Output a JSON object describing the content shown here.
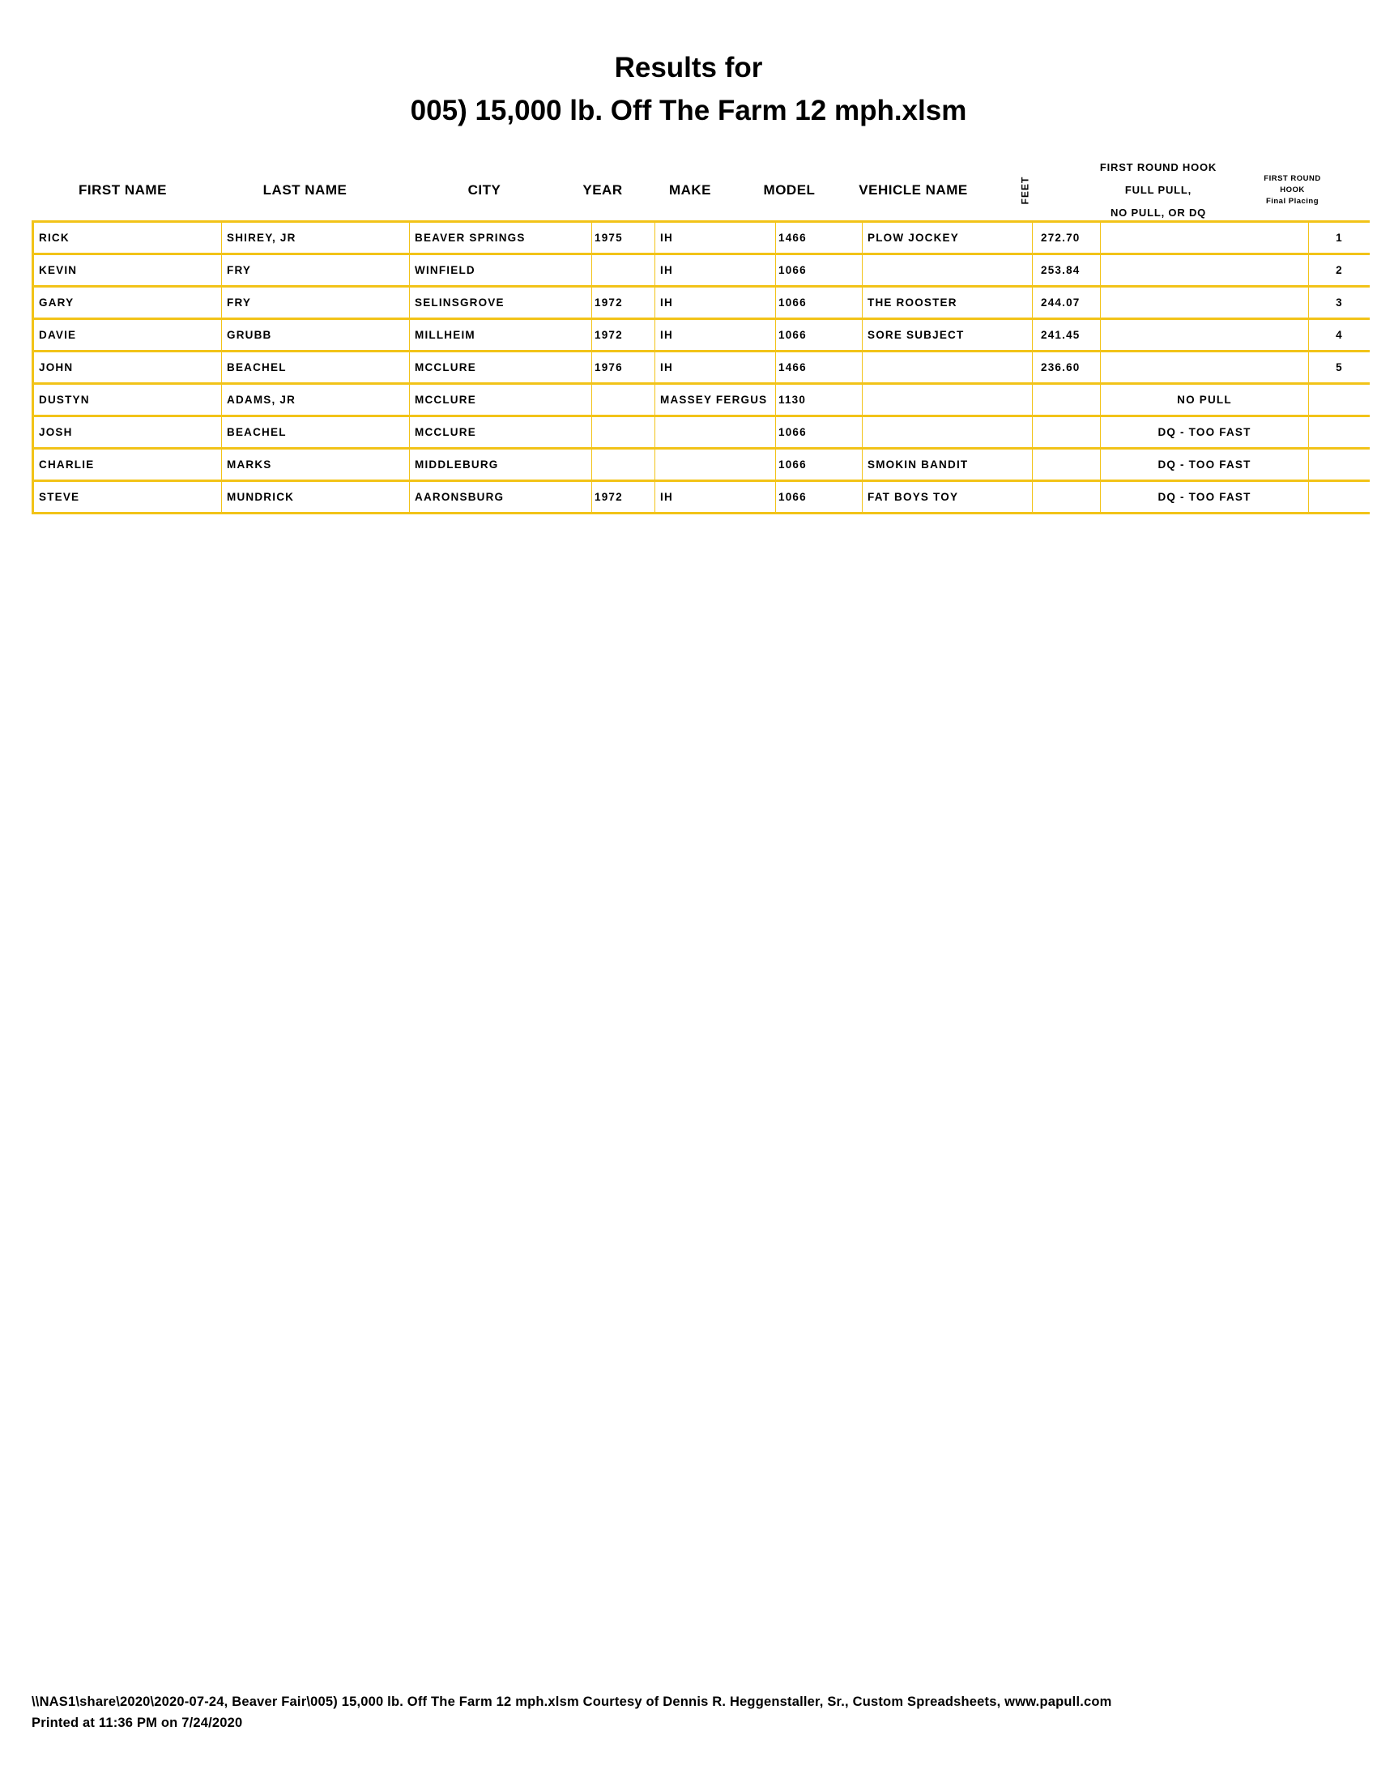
{
  "title": {
    "line1": "Results for",
    "line2": "005) 15,000 lb. Off The Farm  12 mph.xlsm"
  },
  "colors": {
    "grid": "#f2c318",
    "text": "#000000"
  },
  "columns": [
    "FIRST NAME",
    "LAST NAME",
    "CITY",
    "YEAR",
    "MAKE",
    "MODEL",
    "VEHICLE NAME",
    "FEET",
    "FIRST ROUND HOOK\nFULL PULL,\nNO PULL, OR DQ",
    "FIRST ROUND\nHOOK\nFinal Placing"
  ],
  "rows": [
    [
      "RICK",
      "SHIREY, JR",
      "BEAVER SPRINGS",
      "1975",
      "IH",
      "1466",
      "PLOW JOCKEY",
      "272.70",
      "",
      "1"
    ],
    [
      "KEVIN",
      "FRY",
      "WINFIELD",
      "",
      "IH",
      "1066",
      "",
      "253.84",
      "",
      "2"
    ],
    [
      "GARY",
      "FRY",
      "SELINSGROVE",
      "1972",
      "IH",
      "1066",
      "THE ROOSTER",
      "244.07",
      "",
      "3"
    ],
    [
      "DAVIE",
      "GRUBB",
      "MILLHEIM",
      "1972",
      "IH",
      "1066",
      "SORE SUBJECT",
      "241.45",
      "",
      "4"
    ],
    [
      "JOHN",
      "BEACHEL",
      "MCCLURE",
      "1976",
      "IH",
      "1466",
      "",
      "236.60",
      "",
      "5"
    ],
    [
      "DUSTYN",
      "ADAMS, JR",
      "MCCLURE",
      "",
      "MASSEY FERGUS",
      "1130",
      "",
      "",
      "NO PULL",
      ""
    ],
    [
      "JOSH",
      "BEACHEL",
      "MCCLURE",
      "",
      "",
      "1066",
      "",
      "",
      "DQ - TOO FAST",
      ""
    ],
    [
      "CHARLIE",
      "MARKS",
      "MIDDLEBURG",
      "",
      "",
      "1066",
      "SMOKIN BANDIT",
      "",
      "DQ - TOO FAST",
      ""
    ],
    [
      "STEVE",
      "MUNDRICK",
      "AARONSBURG",
      "1972",
      "IH",
      "1066",
      "FAT BOYS TOY",
      "",
      "DQ - TOO FAST",
      ""
    ]
  ],
  "footer": {
    "line1": "\\\\NAS1\\share\\2020\\2020-07-24, Beaver Fair\\005) 15,000 lb. Off The Farm  12 mph.xlsm  Courtesy of Dennis R. Heggenstaller, Sr., Custom Spreadsheets, www.papull.com",
    "line2": "Printed at 11:36 PM on 7/24/2020"
  }
}
